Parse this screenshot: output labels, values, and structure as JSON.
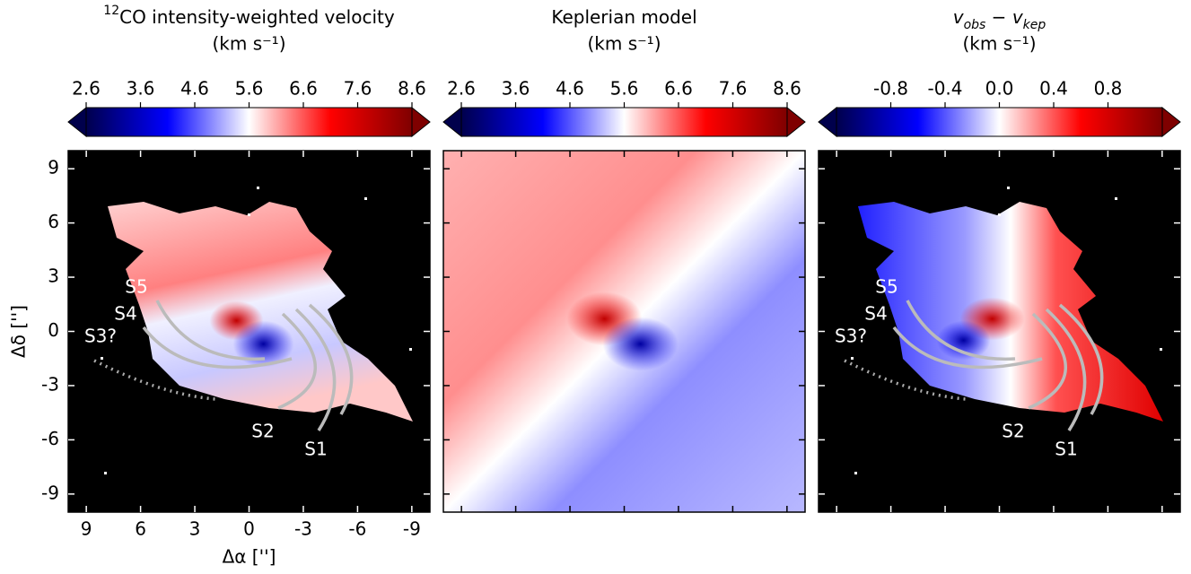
{
  "chart_data": [
    {
      "type": "image",
      "title_superscript": "12",
      "title": "CO intensity-weighted velocity",
      "units": "(km s⁻¹)",
      "cmap": [
        "#00004c",
        "#0000ff",
        "#ffffff",
        "#ff0000",
        "#7f0000"
      ],
      "clim": [
        2.6,
        8.6
      ],
      "cticks": [
        2.6,
        3.6,
        4.6,
        5.6,
        6.6,
        7.6,
        8.6
      ],
      "xlim": [
        10,
        -10
      ],
      "ylim": [
        -10,
        10
      ],
      "xticks": [
        9,
        6,
        3,
        0,
        -3,
        -6,
        -9
      ],
      "yticks": [
        -9,
        -6,
        -3,
        0,
        3,
        6,
        9
      ],
      "xlabel": "Δα ['']",
      "ylabel": "Δδ ['']",
      "annotations": [
        "S1",
        "S2",
        "S3?",
        "S4",
        "S5"
      ]
    },
    {
      "type": "image",
      "title": "Keplerian model",
      "units": "(km s⁻¹)",
      "cmap": [
        "#00004c",
        "#0000ff",
        "#ffffff",
        "#ff0000",
        "#7f0000"
      ],
      "clim": [
        2.6,
        8.6
      ],
      "cticks": [
        2.6,
        3.6,
        4.6,
        5.6,
        6.6,
        7.6,
        8.6
      ]
    },
    {
      "type": "image",
      "title_parts": [
        "v",
        "obs",
        " − ",
        "v",
        "kep"
      ],
      "units": "(km s⁻¹)",
      "cmap": [
        "#00004c",
        "#0000ff",
        "#ffffff",
        "#ff0000",
        "#7f0000"
      ],
      "clim": [
        -1.2,
        1.2
      ],
      "cticks": [
        -0.8,
        -0.4,
        {
          "value": 0,
          "label": "0.0"
        },
        0.4,
        0.8
      ],
      "annotations": [
        "S1",
        "S2",
        "S3?",
        "S4",
        "S5"
      ]
    }
  ]
}
